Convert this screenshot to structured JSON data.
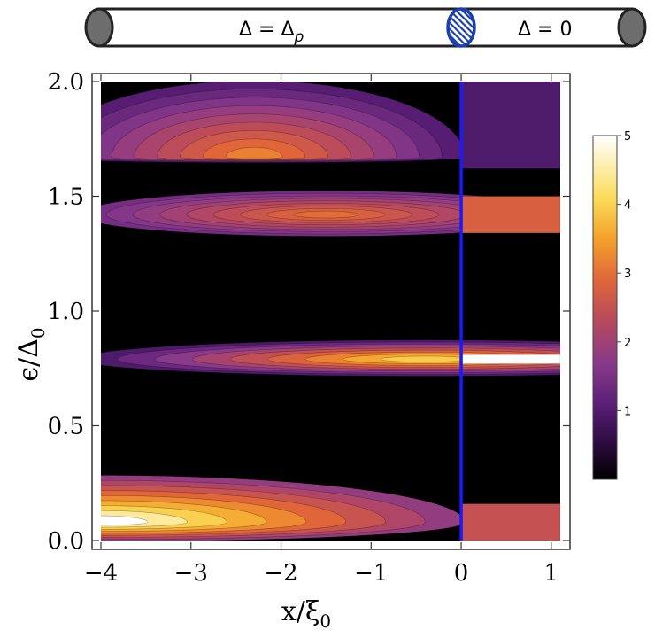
{
  "schematic": {
    "left_region_label": "Δ = Δ",
    "left_region_subscript": "p",
    "right_region_label": "Δ = 0"
  },
  "chart_data": {
    "type": "heatmap",
    "title": "",
    "xlabel": "x/ξ",
    "xlabel_subscript": "0",
    "ylabel": "ϵ/Δ",
    "ylabel_subscript": "0",
    "xlim": [
      -4,
      1.1
    ],
    "ylim": [
      0,
      2.0
    ],
    "x_ticks": [
      -4,
      -3,
      -2,
      -1,
      0,
      1
    ],
    "x_tick_labels": [
      "−4",
      "−3",
      "−2",
      "−1",
      "0",
      "1"
    ],
    "y_ticks": [
      0.0,
      0.5,
      1.0,
      1.5,
      2.0
    ],
    "y_tick_labels": [
      "0.0",
      "0.5",
      "1.0",
      "1.5",
      "2.0"
    ],
    "colorbar": {
      "range": [
        0,
        5
      ],
      "ticks": [
        1,
        2,
        3,
        4,
        5
      ],
      "tick_labels": [
        "1",
        "2",
        "3",
        "4",
        "5"
      ],
      "colormap": [
        "#000000",
        "#2a0a3d",
        "#5a1f78",
        "#8a3a8a",
        "#b8485e",
        "#e0663a",
        "#f5a12a",
        "#fbdc5a",
        "#ffffff"
      ]
    },
    "interface_line": {
      "x": 0,
      "color": "#1a1aff"
    },
    "bands": [
      {
        "region": "left",
        "y0": 1.65,
        "y1": 2.0,
        "peak_y": 1.67,
        "peak_x": -2.3,
        "peak_value": 3.4,
        "base_value": 1.2
      },
      {
        "region": "left",
        "y0": 1.33,
        "y1": 1.52,
        "peak_y": 1.42,
        "peak_x": -1.5,
        "peak_value": 3.2,
        "base_value": 1.6
      },
      {
        "region": "left",
        "y0": 0.72,
        "y1": 0.87,
        "peak_y": 0.79,
        "peak_x": -0.4,
        "peak_value": 4.2,
        "base_value": 1.1
      },
      {
        "region": "left",
        "y0": 0.0,
        "y1": 0.28,
        "peak_y": 0.08,
        "peak_x": -4.0,
        "peak_value": 5.0,
        "base_value": 2.0
      },
      {
        "region": "right",
        "y0": 1.62,
        "y1": 2.0,
        "value": 1.1
      },
      {
        "region": "right",
        "y0": 1.34,
        "y1": 1.5,
        "value": 3.0
      },
      {
        "region": "right",
        "y0": 0.77,
        "y1": 0.81,
        "value": 5.0
      },
      {
        "region": "right",
        "y0": 0.0,
        "y1": 0.16,
        "value": 2.7
      }
    ]
  }
}
